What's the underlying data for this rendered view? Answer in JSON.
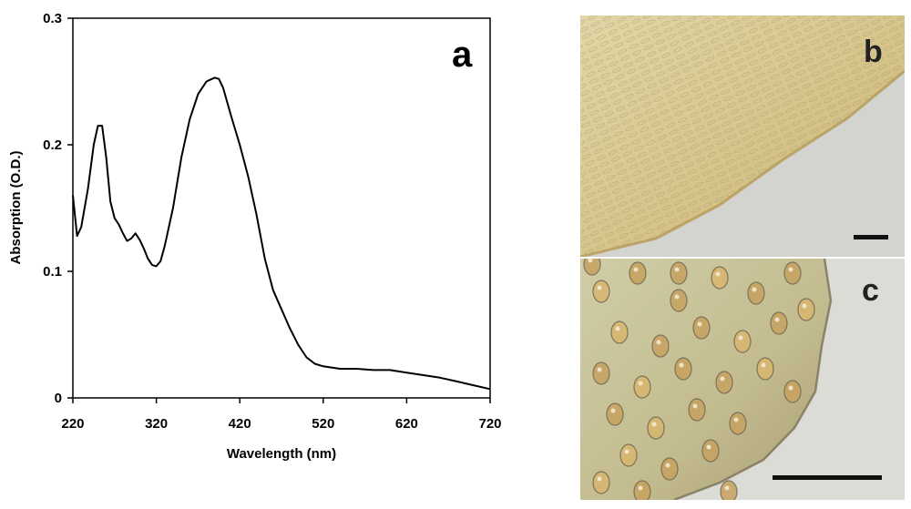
{
  "chart_data": {
    "type": "line",
    "xlabel": "Wavelength (nm)",
    "ylabel": "Absorption (O.D.)",
    "xlim": [
      220,
      720
    ],
    "ylim": [
      0,
      0.3
    ],
    "xticks": [
      220,
      320,
      420,
      520,
      620,
      720
    ],
    "xtick_labels": [
      "220",
      "320",
      "420",
      "520",
      "620",
      "720"
    ],
    "yticks": [
      0,
      0.1,
      0.2,
      0.3
    ],
    "ytick_labels": [
      "0",
      "0.1",
      "0.2",
      "0.3"
    ],
    "grid": false,
    "series": [
      {
        "color": "#000000",
        "x": [
          220,
          225,
          230,
          238,
          245,
          250,
          255,
          260,
          265,
          270,
          275,
          280,
          285,
          290,
          295,
          300,
          305,
          310,
          315,
          320,
          325,
          330,
          340,
          350,
          360,
          370,
          380,
          390,
          395,
          400,
          410,
          420,
          430,
          440,
          450,
          460,
          470,
          480,
          490,
          500,
          510,
          520,
          540,
          560,
          580,
          600,
          620,
          640,
          660,
          680,
          700,
          720
        ],
        "y": [
          0.16,
          0.128,
          0.135,
          0.165,
          0.2,
          0.215,
          0.215,
          0.19,
          0.155,
          0.142,
          0.137,
          0.13,
          0.124,
          0.126,
          0.13,
          0.125,
          0.118,
          0.11,
          0.105,
          0.104,
          0.108,
          0.12,
          0.15,
          0.19,
          0.22,
          0.24,
          0.25,
          0.253,
          0.252,
          0.245,
          0.222,
          0.2,
          0.175,
          0.145,
          0.11,
          0.085,
          0.07,
          0.055,
          0.042,
          0.032,
          0.027,
          0.025,
          0.023,
          0.023,
          0.022,
          0.022,
          0.02,
          0.018,
          0.016,
          0.013,
          0.01,
          0.007
        ]
      }
    ]
  },
  "labels": {
    "panel_a": "a",
    "panel_b": "b",
    "panel_c": "c"
  },
  "photos": {
    "b": {
      "colors": [
        "#e6d9a8",
        "#d9c889",
        "#c9b176",
        "#cfcfca",
        "#d7d8d3"
      ]
    },
    "c": {
      "colors": [
        "#c9c9a0",
        "#d8b87a",
        "#b3b08a",
        "#dad9d4",
        "#8c8570"
      ]
    }
  }
}
